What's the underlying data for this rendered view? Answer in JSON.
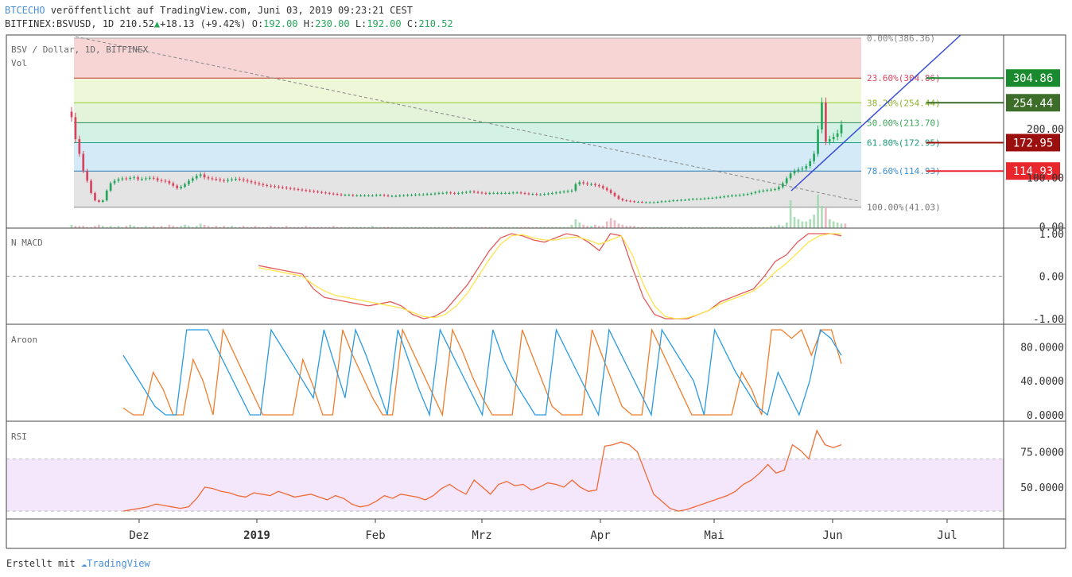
{
  "header": {
    "brand": "BTCECHO",
    "published": "veröffentlicht auf TradingView.com, Juni 03, 2019 09:23:21 CEST",
    "symbol": "BITFINEX:BSVUSD, 1D",
    "last": "210.52",
    "up_arrow": "▲",
    "change": "+18.13 (+9.42%)",
    "o_label": "O:",
    "o_value": "192.00",
    "h_label": "H:",
    "h_value": "230.00",
    "l_label": "L:",
    "l_value": "192.00",
    "c_label": "C:",
    "c_value": "210.52"
  },
  "footer": {
    "created_with": "Erstellt mit",
    "logo_text": "TradingView"
  },
  "colors": {
    "fib_0": "#f7d5d5",
    "fib_236": "#eef7d8",
    "fib_382": "#e3f4da",
    "fib_50": "#d4f1e6",
    "fib_618": "#d4eaf6",
    "fib_786": "#e4e4e4",
    "candle_up": "#26a65b",
    "candle_down": "#d9455f",
    "trendline": "#3a4fd8",
    "macd": "#e35a5a",
    "signal": "#ffe34d",
    "aroon_up": "#f07d2a",
    "aroon_down": "#2a9be0",
    "rsi": "#f06a35",
    "rsi_band": "#f4e6fb"
  },
  "chart_data": [
    {
      "type": "candlestick",
      "pane": "price",
      "title": "BSV / Dollar, 1D, BITFINEX",
      "sublabel": "Vol",
      "y_ticks": [
        "200.00",
        "100.00",
        "0.00"
      ],
      "ylim": [
        0,
        400
      ],
      "x_ticks": [
        "Dez",
        "2019",
        "Feb",
        "Mrz",
        "Apr",
        "Mai",
        "Jun",
        "Jul"
      ],
      "fib_levels": [
        {
          "label": "0.00%(386.36)",
          "value": 386.36
        },
        {
          "label": "23.60%(304.86)",
          "value": 304.86
        },
        {
          "label": "38.20%(254.44)",
          "value": 254.44
        },
        {
          "label": "50.00%(213.70)",
          "value": 213.7
        },
        {
          "label": "61.80%(172.95)",
          "value": 172.95
        },
        {
          "label": "78.60%(114.93)",
          "value": 114.93
        },
        {
          "label": "100.00%(41.03)",
          "value": 41.03
        }
      ],
      "price_tags": [
        {
          "text": "304.86",
          "value": 304.86,
          "color": "#1a8a2e"
        },
        {
          "text": "254.44",
          "value": 254.44,
          "color": "#3c6e2a"
        },
        {
          "text": "172.95",
          "value": 172.95,
          "color": "#9c0f0f"
        },
        {
          "text": "114.93",
          "value": 114.93,
          "color": "#e8262c"
        }
      ],
      "closes": [
        225,
        180,
        150,
        115,
        95,
        70,
        55,
        52,
        55,
        75,
        90,
        95,
        98,
        100,
        99,
        101,
        102,
        98,
        99,
        100,
        101,
        100,
        96,
        95,
        94,
        90,
        85,
        80,
        83,
        88,
        95,
        100,
        105,
        108,
        102,
        100,
        99,
        98,
        96,
        95,
        97,
        98,
        99,
        98,
        96,
        94,
        92,
        90,
        88,
        86,
        85,
        84,
        83,
        82,
        81,
        80,
        79,
        78,
        77,
        76,
        75,
        74,
        73,
        72,
        71,
        70,
        69,
        68,
        67,
        66,
        66,
        66,
        65,
        65,
        65,
        65,
        65,
        65,
        66,
        66,
        65,
        64,
        64,
        64,
        65,
        65,
        66,
        66,
        67,
        67,
        67,
        68,
        68,
        69,
        70,
        70,
        71,
        70,
        69,
        70,
        71,
        72,
        73,
        72,
        71,
        70,
        69,
        70,
        70,
        70,
        70,
        70,
        70,
        71,
        71,
        70,
        69,
        68,
        68,
        67,
        67,
        68,
        69,
        70,
        71,
        72,
        73,
        74,
        75,
        88,
        92,
        90,
        88,
        88,
        86,
        84,
        80,
        76,
        70,
        64,
        58,
        55,
        54,
        53,
        52,
        52,
        51,
        51,
        51,
        51,
        52,
        53,
        53,
        54,
        55,
        55,
        56,
        56,
        57,
        58,
        58,
        58,
        59,
        60,
        60,
        61,
        62,
        63,
        64,
        65,
        65,
        66,
        67,
        68,
        70,
        72,
        74,
        75,
        76,
        77,
        78,
        82,
        90,
        100,
        110,
        115,
        118,
        120,
        125,
        135,
        150,
        200,
        255,
        175,
        180,
        185,
        192,
        210
      ],
      "volumes": [
        3,
        2,
        2,
        2,
        1,
        1,
        2,
        3,
        2,
        1,
        2,
        1,
        2,
        1,
        2,
        3,
        2,
        1,
        1,
        2,
        1,
        2,
        1,
        2,
        1,
        3,
        2,
        1,
        2,
        3,
        2,
        1,
        2,
        4,
        3,
        2,
        1,
        2,
        1,
        2,
        1,
        2,
        1,
        1,
        2,
        1,
        1,
        2,
        1,
        1,
        1,
        2,
        1,
        1,
        1,
        2,
        1,
        1,
        1,
        1,
        2,
        1,
        1,
        1,
        1,
        1,
        1,
        2,
        1,
        1,
        1,
        1,
        1,
        1,
        1,
        1,
        1,
        2,
        1,
        1,
        1,
        1,
        1,
        1,
        1,
        1,
        1,
        1,
        1,
        1,
        1,
        1,
        1,
        1,
        1,
        1,
        1,
        1,
        1,
        1,
        1,
        1,
        1,
        1,
        1,
        1,
        1,
        1,
        1,
        1,
        1,
        1,
        1,
        1,
        1,
        1,
        1,
        1,
        1,
        1,
        1,
        1,
        1,
        1,
        1,
        1,
        1,
        1,
        3,
        8,
        5,
        3,
        2,
        2,
        3,
        2,
        2,
        6,
        9,
        7,
        4,
        3,
        2,
        2,
        2,
        1,
        1,
        1,
        1,
        1,
        1,
        1,
        1,
        1,
        1,
        1,
        1,
        1,
        1,
        1,
        1,
        1,
        1,
        1,
        1,
        1,
        1,
        1,
        1,
        1,
        1,
        1,
        1,
        1,
        1,
        1,
        1,
        1,
        1,
        2,
        2,
        3,
        2,
        5,
        25,
        10,
        8,
        6,
        6,
        8,
        12,
        30,
        20,
        18,
        8,
        6,
        5,
        4,
        4
      ]
    },
    {
      "type": "line",
      "pane": "macd",
      "title": "N MACD",
      "y_ticks": [
        "1.00",
        "0.00",
        "-1.00"
      ],
      "ylim": [
        -1,
        1
      ],
      "series": [
        {
          "values": [
            0.25,
            0.2,
            0.15,
            0.1,
            0.05,
            -0.3,
            -0.5,
            -0.55,
            -0.6,
            -0.65,
            -0.7,
            -0.65,
            -0.6,
            -0.7,
            -0.9,
            -1.0,
            -0.95,
            -0.8,
            -0.5,
            -0.2,
            0.2,
            0.6,
            0.9,
            1.0,
            0.95,
            0.85,
            0.8,
            0.9,
            1.0,
            0.95,
            0.8,
            0.6,
            1.0,
            0.95,
            0.2,
            -0.5,
            -0.9,
            -1.0,
            -1.0,
            -1.0,
            -0.9,
            -0.8,
            -0.6,
            -0.5,
            -0.4,
            -0.3,
            0.0,
            0.35,
            0.5,
            0.8,
            1.0,
            1.0,
            1.0,
            0.95
          ]
        },
        {
          "values": [
            0.2,
            0.15,
            0.1,
            0.05,
            0.0,
            -0.2,
            -0.35,
            -0.45,
            -0.5,
            -0.55,
            -0.6,
            -0.65,
            -0.7,
            -0.75,
            -0.85,
            -0.95,
            -0.98,
            -0.9,
            -0.7,
            -0.4,
            0.0,
            0.4,
            0.75,
            0.95,
            0.98,
            0.9,
            0.85,
            0.85,
            0.9,
            0.92,
            0.85,
            0.75,
            0.85,
            0.95,
            0.5,
            -0.2,
            -0.7,
            -0.95,
            -1.0,
            -0.98,
            -0.9,
            -0.8,
            -0.65,
            -0.55,
            -0.45,
            -0.35,
            -0.15,
            0.1,
            0.3,
            0.55,
            0.8,
            0.95,
            1.0,
            1.0
          ]
        }
      ]
    },
    {
      "type": "line",
      "pane": "aroon",
      "title": "Aroon",
      "y_ticks": [
        "80.0000",
        "40.0000",
        "0.0000"
      ],
      "ylim": [
        0,
        100
      ],
      "series": [
        {
          "values": [
            8,
            0,
            0,
            50,
            30,
            0,
            0,
            65,
            40,
            0,
            100,
            75,
            50,
            25,
            0,
            0,
            0,
            0,
            65,
            35,
            0,
            0,
            100,
            70,
            45,
            20,
            0,
            0,
            100,
            75,
            50,
            25,
            0,
            100,
            75,
            45,
            20,
            0,
            0,
            0,
            100,
            70,
            40,
            10,
            0,
            0,
            0,
            100,
            70,
            40,
            10,
            0,
            0,
            100,
            75,
            50,
            25,
            0,
            0,
            0,
            0,
            0,
            50,
            30,
            0,
            100,
            100,
            90,
            100,
            70,
            100,
            100,
            60
          ]
        },
        {
          "values": [
            70,
            50,
            30,
            10,
            0,
            0,
            100,
            100,
            100,
            75,
            50,
            25,
            0,
            0,
            100,
            80,
            60,
            40,
            20,
            100,
            60,
            20,
            100,
            70,
            35,
            0,
            100,
            65,
            30,
            0,
            100,
            75,
            50,
            25,
            0,
            100,
            65,
            40,
            20,
            0,
            0,
            100,
            75,
            50,
            25,
            0,
            100,
            75,
            50,
            25,
            0,
            100,
            80,
            60,
            40,
            0,
            100,
            75,
            50,
            30,
            10,
            0,
            50,
            25,
            0,
            40,
            100,
            90,
            70
          ]
        }
      ]
    },
    {
      "type": "line",
      "pane": "rsi",
      "title": "RSI",
      "y_ticks": [
        "75.0000",
        "50.0000"
      ],
      "ylim": [
        28,
        95
      ],
      "band": [
        33,
        70
      ],
      "series": [
        {
          "values": [
            33,
            34,
            35,
            36,
            38,
            37,
            36,
            35,
            36,
            42,
            50,
            49,
            47,
            46,
            44,
            43,
            46,
            45,
            44,
            47,
            45,
            43,
            44,
            45,
            43,
            41,
            44,
            42,
            38,
            36,
            37,
            40,
            44,
            42,
            45,
            44,
            43,
            41,
            44,
            49,
            52,
            48,
            45,
            55,
            50,
            45,
            52,
            54,
            51,
            52,
            48,
            50,
            53,
            52,
            50,
            55,
            50,
            47,
            48,
            79,
            80,
            82,
            80,
            75,
            60,
            45,
            40,
            35,
            33,
            34,
            36,
            38,
            40,
            42,
            44,
            47,
            52,
            55,
            60,
            66,
            60,
            62,
            80,
            76,
            70,
            90,
            80,
            78,
            80
          ]
        }
      ]
    }
  ]
}
